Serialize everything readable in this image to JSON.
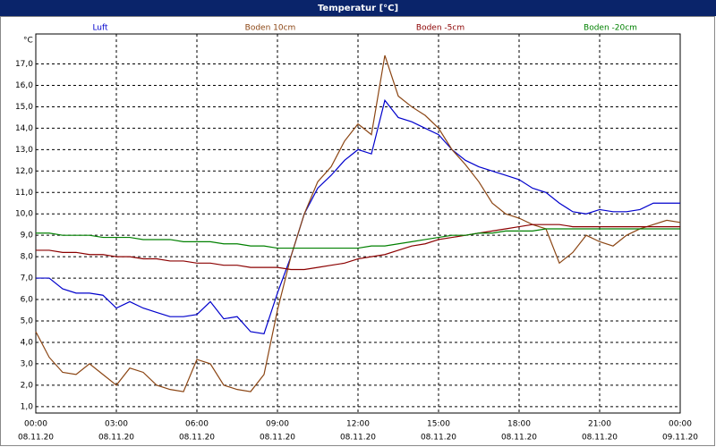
{
  "chart_data": {
    "type": "line",
    "title": "Temperatur [°C]",
    "y_unit": "°C",
    "x": [
      0,
      0.5,
      1,
      1.5,
      2,
      2.5,
      3,
      3.5,
      4,
      4.5,
      5,
      5.5,
      6,
      6.5,
      7,
      7.5,
      8,
      8.5,
      9,
      9.5,
      10,
      10.5,
      11,
      11.5,
      12,
      12.5,
      13,
      13.5,
      14,
      14.5,
      15,
      15.5,
      16,
      16.5,
      17,
      17.5,
      18,
      18.5,
      19,
      19.5,
      20,
      20.5,
      21,
      21.5,
      22,
      22.5,
      23,
      23.5,
      24
    ],
    "series": [
      {
        "name": "Luft",
        "color": "#0000cc",
        "values": [
          7.0,
          7.0,
          6.5,
          6.3,
          6.3,
          6.2,
          5.6,
          5.9,
          5.6,
          5.4,
          5.2,
          5.2,
          5.3,
          5.9,
          5.1,
          5.2,
          4.5,
          4.4,
          6.3,
          8.0,
          10.0,
          11.2,
          11.8,
          12.5,
          13.0,
          12.8,
          15.3,
          14.5,
          14.3,
          14.0,
          13.7,
          13.0,
          12.5,
          12.2,
          12.0,
          11.8,
          11.6,
          11.2,
          11.0,
          10.5,
          10.1,
          10.0,
          10.2,
          10.1,
          10.1,
          10.2,
          10.5,
          10.5,
          10.5
        ]
      },
      {
        "name": "Boden 10cm",
        "color": "#8b4513",
        "values": [
          4.5,
          3.3,
          2.6,
          2.5,
          3.0,
          2.5,
          2.0,
          2.8,
          2.6,
          2.0,
          1.8,
          1.7,
          3.2,
          3.0,
          2.0,
          1.8,
          1.7,
          2.5,
          5.5,
          8.0,
          10.0,
          11.5,
          12.2,
          13.4,
          14.2,
          13.7,
          17.4,
          15.5,
          15.0,
          14.6,
          14.0,
          13.0,
          12.3,
          11.5,
          10.5,
          10.0,
          9.8,
          9.5,
          9.3,
          7.7,
          8.2,
          9.0,
          8.7,
          8.5,
          9.0,
          9.3,
          9.5,
          9.7,
          9.6
        ]
      },
      {
        "name": "Boden -5cm",
        "color": "#8b0000",
        "values": [
          8.3,
          8.3,
          8.2,
          8.2,
          8.1,
          8.1,
          8.0,
          8.0,
          7.9,
          7.9,
          7.8,
          7.8,
          7.7,
          7.7,
          7.6,
          7.6,
          7.5,
          7.5,
          7.5,
          7.4,
          7.4,
          7.5,
          7.6,
          7.7,
          7.9,
          8.0,
          8.1,
          8.3,
          8.5,
          8.6,
          8.8,
          8.9,
          9.0,
          9.1,
          9.2,
          9.3,
          9.4,
          9.5,
          9.5,
          9.5,
          9.4,
          9.4,
          9.4,
          9.4,
          9.4,
          9.4,
          9.4,
          9.4,
          9.4
        ]
      },
      {
        "name": "Boden -20cm",
        "color": "#008000",
        "values": [
          9.1,
          9.1,
          9.0,
          9.0,
          9.0,
          8.9,
          8.9,
          8.9,
          8.8,
          8.8,
          8.8,
          8.7,
          8.7,
          8.7,
          8.6,
          8.6,
          8.5,
          8.5,
          8.4,
          8.4,
          8.4,
          8.4,
          8.4,
          8.4,
          8.4,
          8.5,
          8.5,
          8.6,
          8.7,
          8.8,
          8.9,
          9.0,
          9.0,
          9.1,
          9.1,
          9.2,
          9.2,
          9.2,
          9.3,
          9.3,
          9.3,
          9.3,
          9.3,
          9.3,
          9.3,
          9.3,
          9.3,
          9.3,
          9.3
        ]
      }
    ],
    "xlim": [
      0,
      24
    ],
    "xticks": [
      {
        "value": 0,
        "label": "00:00"
      },
      {
        "value": 3,
        "label": "03:00"
      },
      {
        "value": 6,
        "label": "06:00"
      },
      {
        "value": 9,
        "label": "09:00"
      },
      {
        "value": 12,
        "label": "12:00"
      },
      {
        "value": 15,
        "label": "15:00"
      },
      {
        "value": 18,
        "label": "18:00"
      },
      {
        "value": 21,
        "label": "21:00"
      },
      {
        "value": 24,
        "label": "00:00"
      }
    ],
    "xtick_dates": [
      "08.11.20",
      "08.11.20",
      "08.11.20",
      "08.11.20",
      "08.11.20",
      "08.11.20",
      "08.11.20",
      "08.11.20",
      "09.11.20"
    ],
    "ylim": [
      0.7,
      18.4
    ],
    "yticks": [
      {
        "value": 1,
        "label": "1,0"
      },
      {
        "value": 2,
        "label": "2,0"
      },
      {
        "value": 3,
        "label": "3,0"
      },
      {
        "value": 4,
        "label": "4,0"
      },
      {
        "value": 5,
        "label": "5,0"
      },
      {
        "value": 6,
        "label": "6,0"
      },
      {
        "value": 7,
        "label": "7,0"
      },
      {
        "value": 8,
        "label": "8,0"
      },
      {
        "value": 9,
        "label": "9,0"
      },
      {
        "value": 10,
        "label": "10,0"
      },
      {
        "value": 11,
        "label": "11,0"
      },
      {
        "value": 12,
        "label": "12,0"
      },
      {
        "value": 13,
        "label": "13,0"
      },
      {
        "value": 14,
        "label": "14,0"
      },
      {
        "value": 15,
        "label": "15,0"
      },
      {
        "value": 16,
        "label": "16,0"
      },
      {
        "value": 17,
        "label": "17,0"
      }
    ],
    "grid": true,
    "legend": "top"
  }
}
